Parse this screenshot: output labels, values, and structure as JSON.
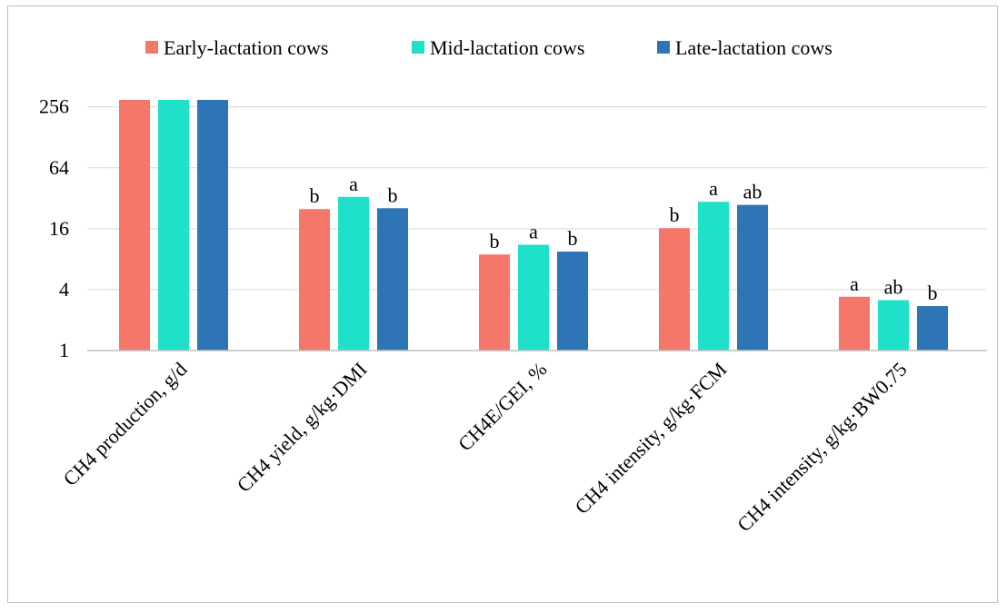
{
  "chart_data": {
    "type": "bar",
    "title": "",
    "xlabel": "",
    "ylabel": "",
    "y_scale": "log2",
    "ylim": [
      1,
      300
    ],
    "y_ticks": [
      1,
      4,
      16,
      64,
      256
    ],
    "y_tick_labels": [
      "1",
      "4",
      "16",
      "64",
      "256"
    ],
    "grid": "horizontal",
    "legend_position": "top",
    "categories": [
      "CH4 production, g/d",
      "CH4 yield, g/kg·DMI",
      "CH4E/GEI, %",
      "CH4 intensity, g/kg·FCM",
      "CH4 intensity, g/kg·BW0.75"
    ],
    "series": [
      {
        "name": "Early-lactation cows",
        "color": "#f4776a",
        "values": [
          370,
          25,
          8.9,
          16.2,
          3.4
        ],
        "labels": [
          "",
          "b",
          "b",
          "b",
          "a"
        ]
      },
      {
        "name": "Mid-lactation cows",
        "color": "#1fe0c8",
        "values": [
          370,
          33,
          11.1,
          29.5,
          3.15
        ],
        "labels": [
          "",
          "a",
          "a",
          "a",
          "ab"
        ]
      },
      {
        "name": "Late-lactation cows",
        "color": "#2e75b6",
        "values": [
          370,
          25.5,
          9.5,
          27.5,
          2.75
        ],
        "labels": [
          "",
          "b",
          "b",
          "ab",
          "b"
        ]
      }
    ]
  }
}
